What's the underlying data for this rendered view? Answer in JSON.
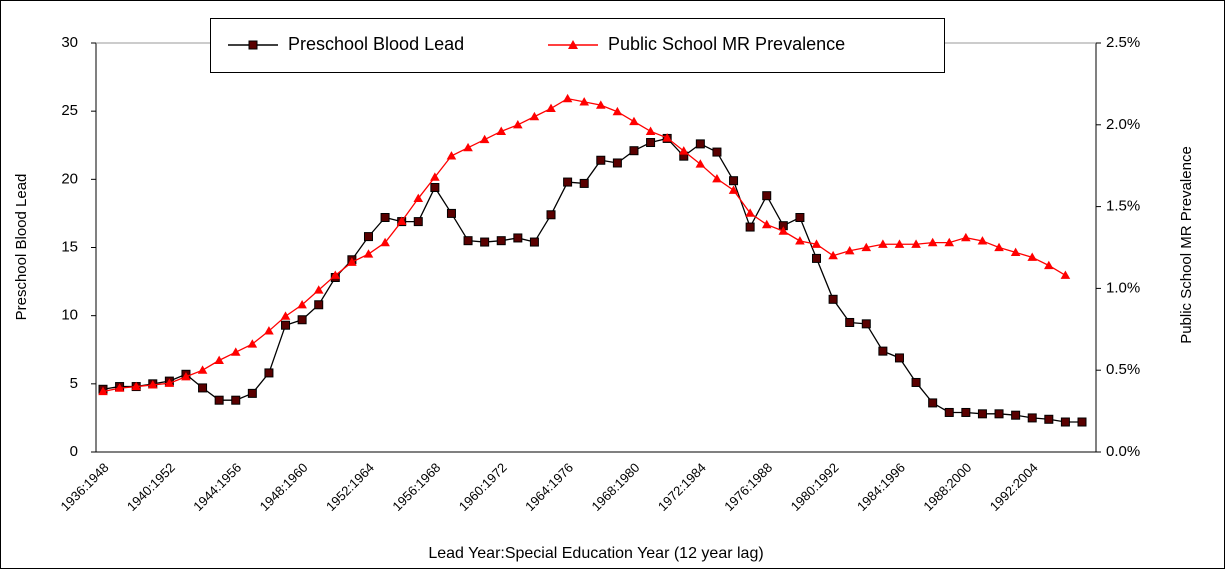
{
  "chart_data": {
    "type": "line",
    "x_label": "Lead Year:Special Education Year (12 year lag)",
    "y_label": "Preschool Blood Lead",
    "y2_label": "Public School MR Prevalence",
    "legend": "top",
    "grid": false,
    "categories": [
      "1936:1948",
      null,
      null,
      null,
      "1940:1952",
      null,
      null,
      null,
      "1944:1956",
      null,
      null,
      null,
      "1948:1960",
      null,
      null,
      null,
      "1952:1964",
      null,
      null,
      null,
      "1956:1968",
      null,
      null,
      null,
      "1960:1972",
      null,
      null,
      null,
      "1964:1976",
      null,
      null,
      null,
      "1968:1980",
      null,
      null,
      null,
      "1972:1984",
      null,
      null,
      null,
      "1976:1988",
      null,
      null,
      null,
      "1980:1992",
      null,
      null,
      null,
      "1984:1996",
      null,
      null,
      null,
      "1988:2000",
      null,
      null,
      null,
      "1992:2004",
      null,
      null,
      null
    ],
    "ylim": [
      0,
      30
    ],
    "yticks": [
      0,
      5,
      10,
      15,
      20,
      25,
      30
    ],
    "y2lim": [
      0,
      2.5
    ],
    "y2ticks": [
      {
        "value": 0,
        "label": "0.0%"
      },
      {
        "value": 0.5,
        "label": "0.5%"
      },
      {
        "value": 1,
        "label": "1.0%"
      },
      {
        "value": 1.5,
        "label": "1.5%"
      },
      {
        "value": 2,
        "label": "2.0%"
      },
      {
        "value": 2.5,
        "label": "2.5%"
      }
    ],
    "series": [
      {
        "name": "Preschool Blood Lead",
        "color": "#000000",
        "marker": "square",
        "marker_color": "#5a0000",
        "values": [
          4.6,
          4.8,
          4.8,
          5.0,
          5.2,
          5.7,
          4.7,
          3.8,
          3.8,
          4.3,
          5.8,
          9.3,
          9.7,
          10.8,
          12.8,
          14.1,
          15.8,
          17.2,
          16.9,
          16.9,
          19.4,
          17.5,
          15.5,
          15.4,
          15.5,
          15.7,
          15.4,
          17.4,
          19.8,
          19.7,
          21.4,
          21.2,
          22.1,
          22.7,
          23.0,
          21.7,
          22.6,
          22.0,
          19.9,
          16.5,
          18.8,
          16.6,
          17.2,
          14.2,
          11.2,
          9.5,
          9.4,
          7.4,
          6.9,
          5.1,
          3.6,
          2.9,
          2.9,
          2.8,
          2.8,
          2.7,
          2.5,
          2.4,
          2.2,
          2.2
        ]
      },
      {
        "name": "Public School MR Prevalence",
        "color": "#ff0000",
        "marker": "triangle",
        "marker_color": "#ff0000",
        "axis": "y2",
        "values": [
          0.37,
          0.39,
          0.4,
          0.41,
          0.42,
          0.46,
          0.5,
          0.56,
          0.61,
          0.66,
          0.74,
          0.83,
          0.9,
          0.99,
          1.08,
          1.16,
          1.21,
          1.28,
          1.41,
          1.55,
          1.68,
          1.81,
          1.86,
          1.91,
          1.96,
          2.0,
          2.05,
          2.1,
          2.16,
          2.14,
          2.12,
          2.08,
          2.02,
          1.96,
          1.92,
          1.84,
          1.76,
          1.67,
          1.6,
          1.46,
          1.39,
          1.35,
          1.29,
          1.27,
          1.2,
          1.23,
          1.25,
          1.27,
          1.27,
          1.27,
          1.28,
          1.28,
          1.31,
          1.29,
          1.25,
          1.22,
          1.19,
          1.14,
          1.08,
          null
        ]
      }
    ]
  }
}
